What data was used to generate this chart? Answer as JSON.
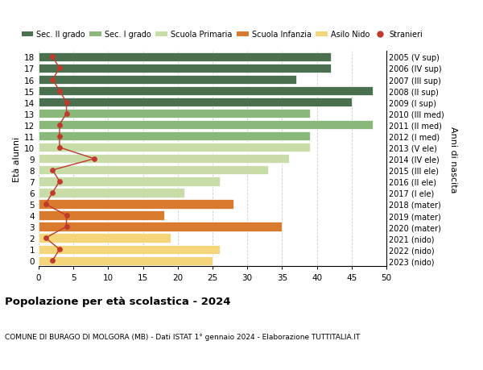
{
  "ages": [
    0,
    1,
    2,
    3,
    4,
    5,
    6,
    7,
    8,
    9,
    10,
    11,
    12,
    13,
    14,
    15,
    16,
    17,
    18
  ],
  "years": [
    "2023 (nido)",
    "2022 (nido)",
    "2021 (nido)",
    "2020 (mater)",
    "2019 (mater)",
    "2018 (mater)",
    "2017 (I ele)",
    "2016 (II ele)",
    "2015 (III ele)",
    "2014 (IV ele)",
    "2013 (V ele)",
    "2012 (I med)",
    "2011 (II med)",
    "2010 (III med)",
    "2009 (I sup)",
    "2008 (II sup)",
    "2007 (III sup)",
    "2006 (IV sup)",
    "2005 (V sup)"
  ],
  "bar_values": [
    25,
    26,
    19,
    35,
    18,
    28,
    21,
    26,
    33,
    36,
    39,
    39,
    48,
    39,
    45,
    48,
    37,
    42,
    42
  ],
  "stranieri": [
    2,
    3,
    1,
    4,
    4,
    1,
    2,
    3,
    2,
    8,
    3,
    3,
    3,
    4,
    4,
    3,
    2,
    3,
    2
  ],
  "color_by_age": {
    "0": "#f5d57a",
    "1": "#f5d57a",
    "2": "#f5d57a",
    "3": "#d97b2e",
    "4": "#d97b2e",
    "5": "#d97b2e",
    "6": "#c8dca8",
    "7": "#c8dca8",
    "8": "#c8dca8",
    "9": "#c8dca8",
    "10": "#c8dca8",
    "11": "#8ab87a",
    "12": "#8ab87a",
    "13": "#8ab87a",
    "14": "#4a7050",
    "15": "#4a7050",
    "16": "#4a7050",
    "17": "#4a7050",
    "18": "#4a7050"
  },
  "stranieri_color": "#c0392b",
  "title": "Popolazione per età scolastica - 2024",
  "subtitle": "COMUNE DI BURAGO DI MOLGORA (MB) - Dati ISTAT 1° gennaio 2024 - Elaborazione TUTTITALIA.IT",
  "ylabel_left": "Età alunni",
  "ylabel_right": "Anni di nascita",
  "xlim": [
    0,
    50
  ],
  "xticks": [
    0,
    5,
    10,
    15,
    20,
    25,
    30,
    35,
    40,
    45,
    50
  ],
  "legend_labels": [
    "Sec. II grado",
    "Sec. I grado",
    "Scuola Primaria",
    "Scuola Infanzia",
    "Asilo Nido",
    "Stranieri"
  ],
  "legend_colors": [
    "#4a7050",
    "#8ab87a",
    "#c8dca8",
    "#d97b2e",
    "#f5d57a",
    "#c0392b"
  ],
  "legend_markers": [
    "s",
    "s",
    "s",
    "s",
    "s",
    "o"
  ],
  "background_color": "#ffffff",
  "grid_color": "#cccccc"
}
